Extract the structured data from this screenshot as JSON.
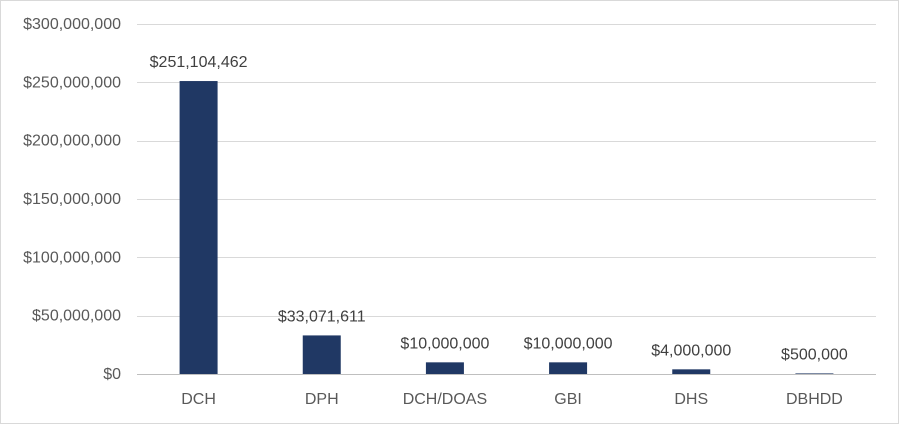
{
  "chart_data": {
    "type": "bar",
    "title": "",
    "xlabel": "",
    "ylabel": "",
    "categories": [
      "DCH",
      "DPH",
      "DCH/DOAS",
      "GBI",
      "DHS",
      "DBHDD"
    ],
    "values": [
      251104462,
      33071611,
      10000000,
      10000000,
      4000000,
      500000
    ],
    "data_labels": [
      "$251,104,462",
      "$33,071,611",
      "$10,000,000",
      "$10,000,000",
      "$4,000,000",
      "$500,000"
    ],
    "ylim": [
      0,
      300000000
    ],
    "yticks": [
      0,
      50000000,
      100000000,
      150000000,
      200000000,
      250000000,
      300000000
    ],
    "ytick_labels": [
      "$0",
      "$50,000,000",
      "$100,000,000",
      "$150,000,000",
      "$200,000,000",
      "$250,000,000",
      "$300,000,000"
    ],
    "grid": true,
    "legend": "none",
    "bar_color": "#203864",
    "grid_color": "#d9d9d9",
    "axis_color": "#bfbfbf"
  }
}
